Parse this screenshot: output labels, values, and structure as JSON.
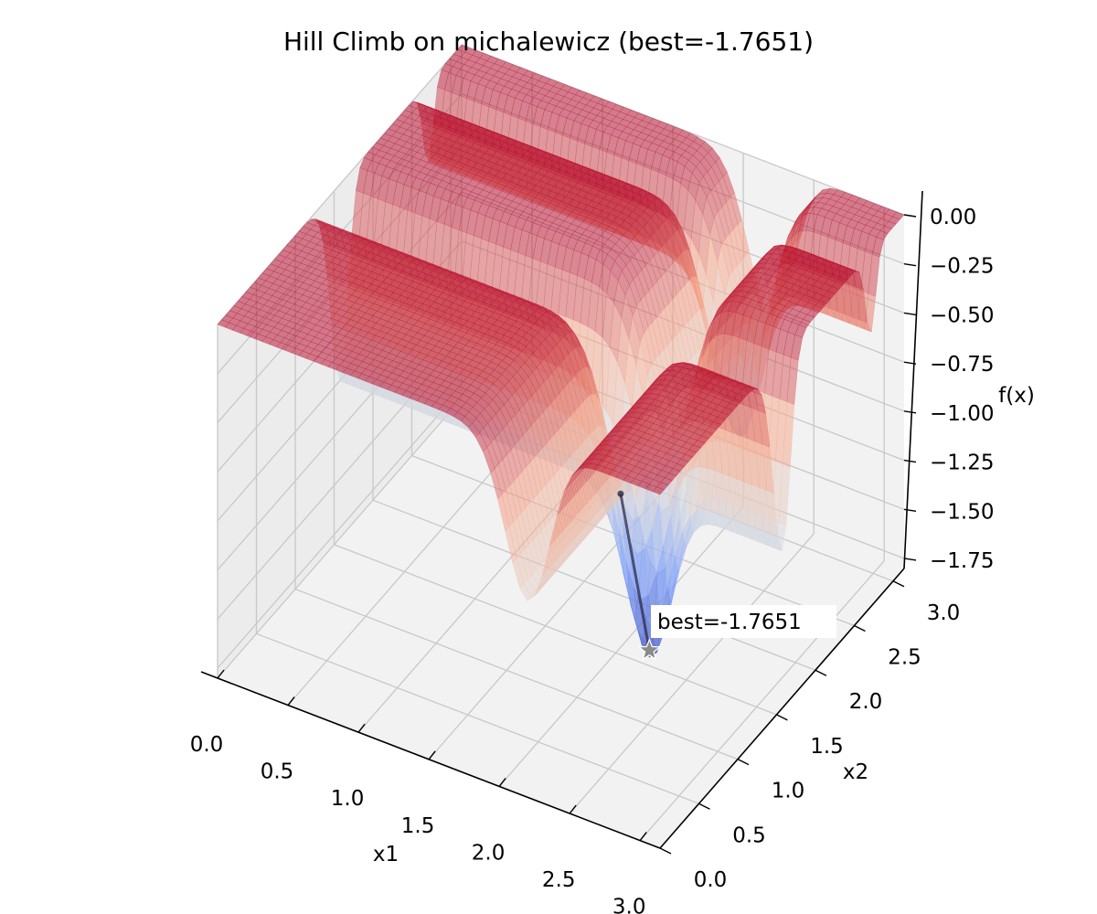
{
  "chart_data": {
    "type": "surface3d",
    "title": "Hill Climb on michalewicz (best=-1.7651)",
    "function": "michalewicz",
    "xlabel": "x1",
    "ylabel": "x2",
    "zlabel": "f(x)",
    "xlim": [
      0,
      3.1416
    ],
    "ylim": [
      0,
      3.1416
    ],
    "zlim": [
      -1.8013,
      0
    ],
    "x_ticks": [
      "0.0",
      "0.5",
      "1.0",
      "1.5",
      "2.0",
      "2.5",
      "3.0"
    ],
    "y_ticks": [
      "0.0",
      "0.5",
      "1.0",
      "1.5",
      "2.0",
      "2.5",
      "3.0"
    ],
    "z_ticks": [
      "0.00",
      "−0.25",
      "−0.50",
      "−0.75",
      "−1.00",
      "−1.25",
      "−1.50",
      "−1.75"
    ],
    "colormap": "coolwarm",
    "grid": true,
    "path": {
      "color": "#2b2b4a",
      "points": [
        {
          "x1": 2.2,
          "x2": 1.2,
          "f": -0.8
        },
        {
          "x1": 2.2,
          "x2": 1.57,
          "f": -1.7651
        }
      ]
    },
    "best": {
      "x1": 2.2,
      "x2": 1.57,
      "f": -1.7651,
      "label": "best=-1.7651"
    }
  }
}
